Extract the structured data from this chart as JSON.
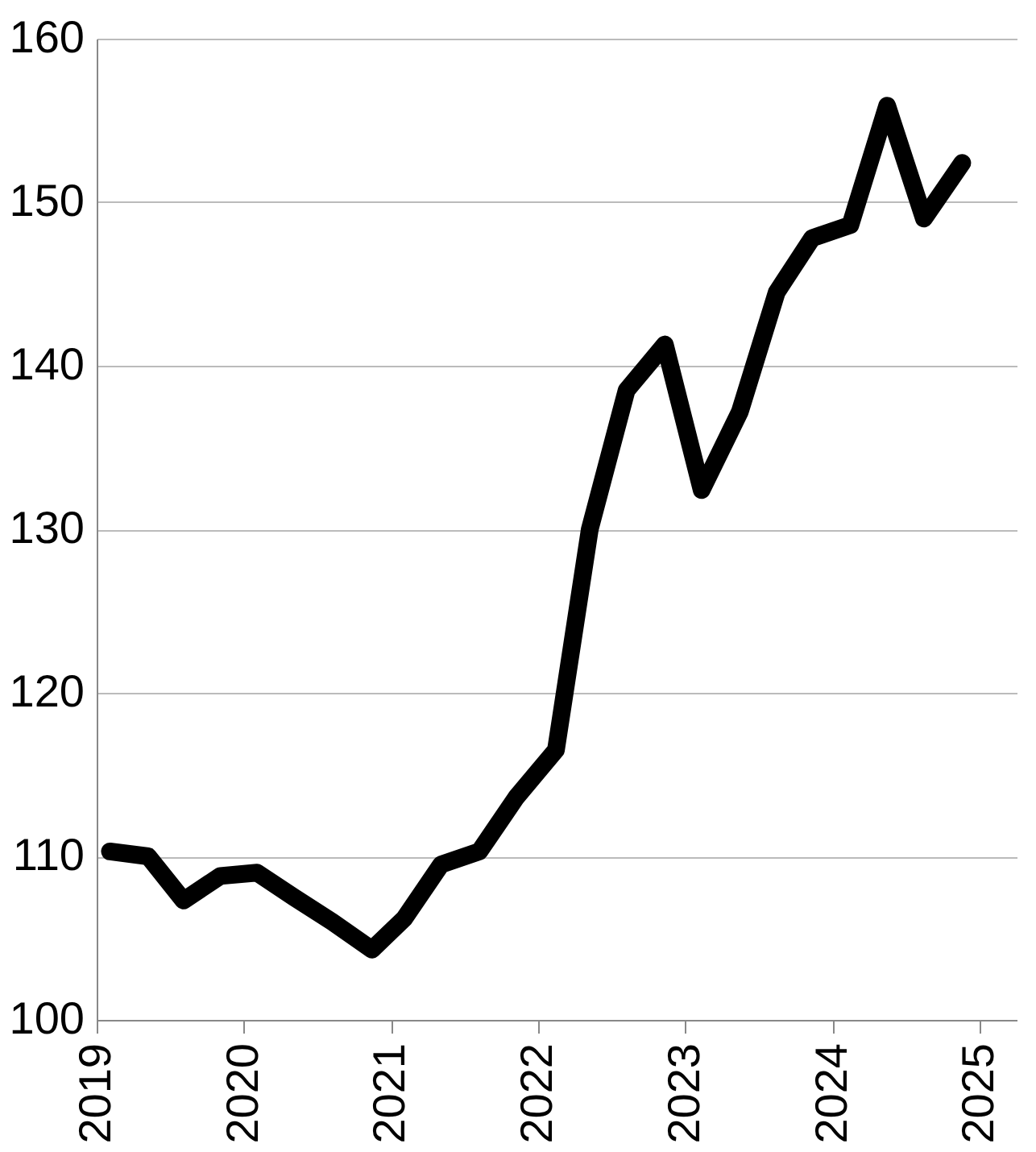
{
  "chart_data": {
    "type": "line",
    "x": [
      2019.09,
      2019.35,
      2019.59,
      2019.84,
      2020.09,
      2020.34,
      2020.6,
      2020.87,
      2021.09,
      2021.34,
      2021.6,
      2021.85,
      2022.12,
      2022.35,
      2022.6,
      2022.86,
      2023.11,
      2023.37,
      2023.62,
      2023.86,
      2024.12,
      2024.37,
      2024.62,
      2024.88
    ],
    "series": [
      {
        "color": "#000000",
        "values": [
          110.3,
          110,
          107.3,
          108.8,
          109,
          107.5,
          106,
          104.3,
          106.2,
          109.5,
          110.3,
          113.6,
          116.5,
          130,
          138.5,
          141.3,
          132.4,
          137.2,
          144.5,
          147.8,
          148.6,
          155.9,
          149,
          152.4
        ]
      }
    ],
    "xlim": [
      2019,
      2025.25
    ],
    "xticks": [
      2019,
      2020,
      2021,
      2022,
      2023,
      2024,
      2025
    ],
    "ylim": [
      100,
      160
    ],
    "yticks": [
      100,
      110,
      120,
      130,
      140,
      150,
      160
    ],
    "grid": "y",
    "line_style": "solid",
    "marker": "none"
  }
}
